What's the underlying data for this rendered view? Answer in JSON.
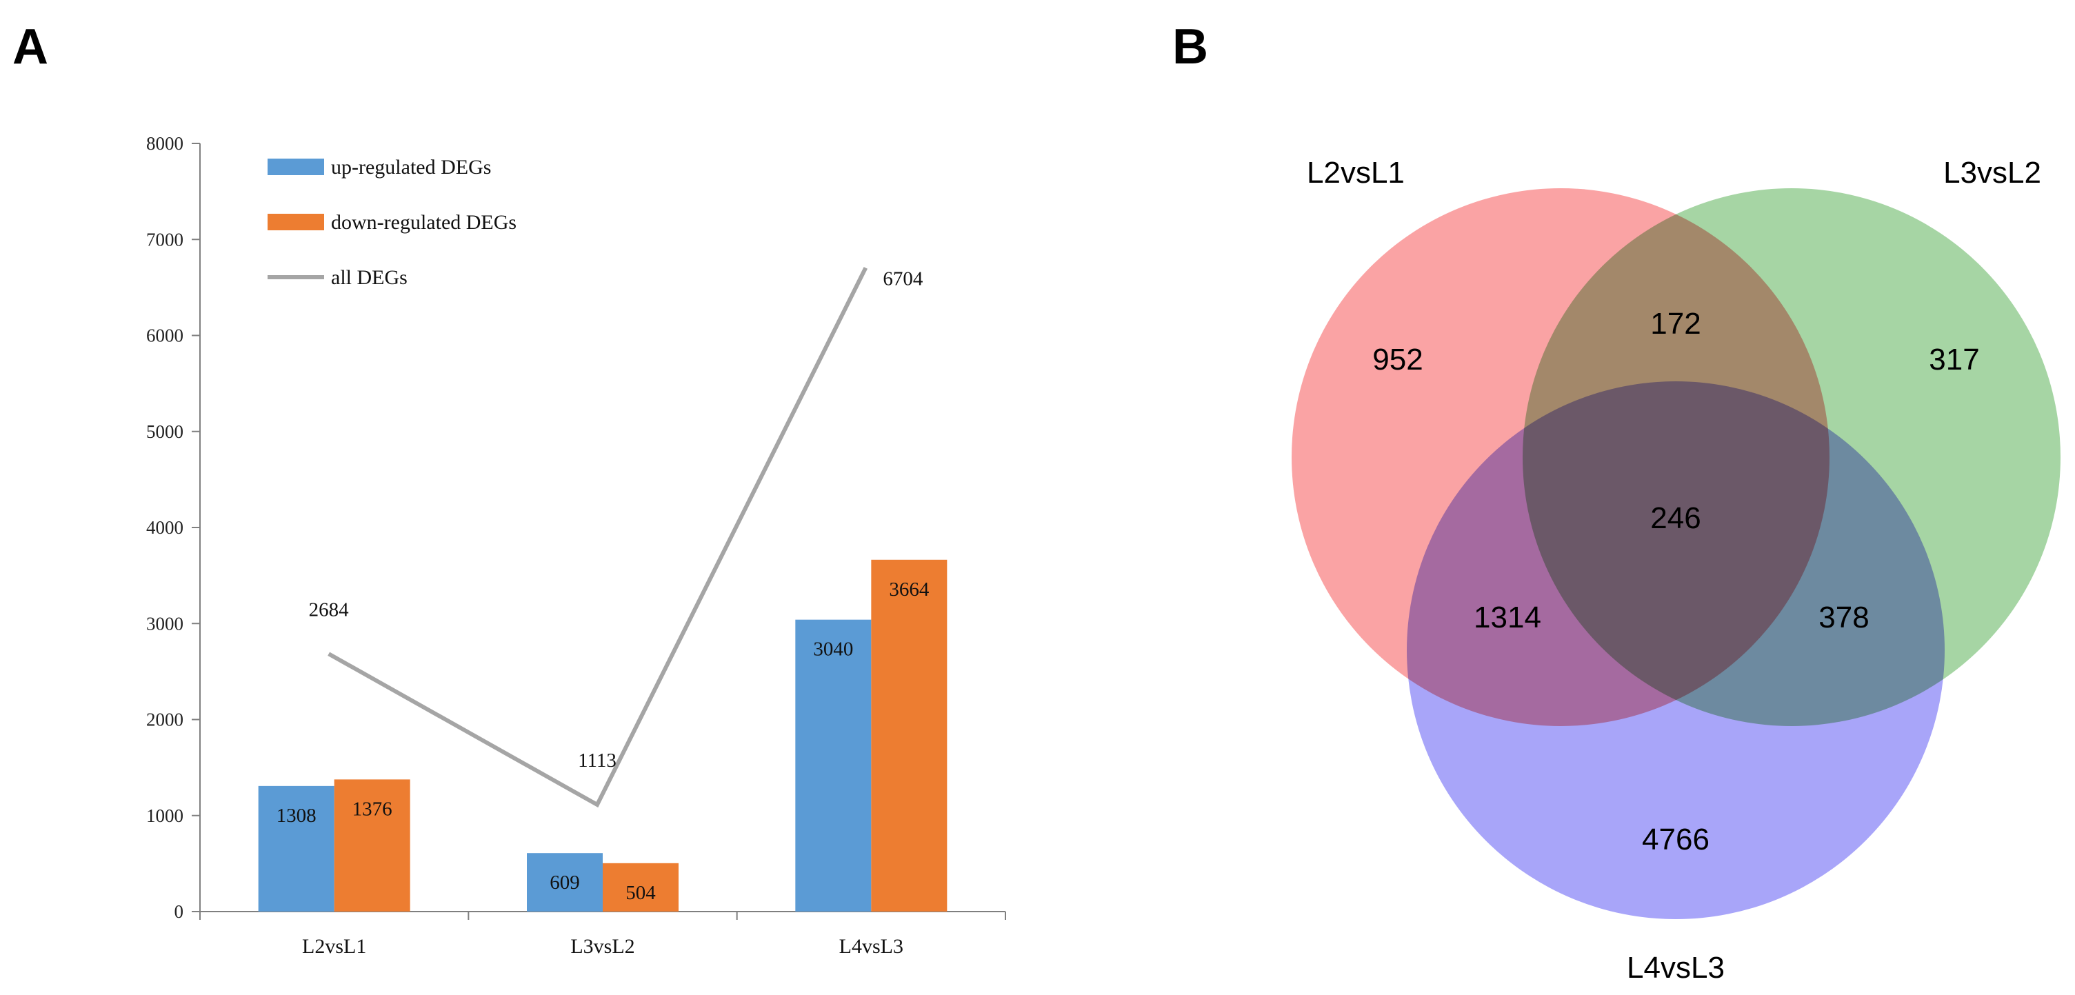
{
  "panels": {
    "a": "A",
    "b": "B"
  },
  "chart_data": [
    {
      "type": "bar",
      "title": "",
      "xlabel": "",
      "ylabel": "",
      "ylim": [
        0,
        8000
      ],
      "yticks": [
        0,
        1000,
        2000,
        3000,
        4000,
        5000,
        6000,
        7000,
        8000
      ],
      "categories": [
        "L2vsL1",
        "L3vsL2",
        "L4vsL3"
      ],
      "series": [
        {
          "name": "up-regulated DEGs",
          "kind": "bar",
          "color": "#5b9bd5",
          "values": [
            1308,
            609,
            3040
          ]
        },
        {
          "name": "down-regulated DEGs",
          "kind": "bar",
          "color": "#ed7d31",
          "values": [
            1376,
            504,
            3664
          ]
        },
        {
          "name": "all DEGs",
          "kind": "line",
          "color": "#a5a5a5",
          "values": [
            2684,
            1113,
            6704
          ]
        }
      ],
      "legend_position": "top-left"
    },
    {
      "type": "venn",
      "sets": [
        {
          "name": "L2vsL1",
          "color": "#f8898b"
        },
        {
          "name": "L3vsL2",
          "color": "#8dc98b"
        },
        {
          "name": "L4vsL3",
          "color": "#8f8cf7"
        }
      ],
      "regions": {
        "L2vsL1_only": 952,
        "L3vsL2_only": 317,
        "L4vsL3_only": 4766,
        "L2vsL1_L3vsL2": 172,
        "L2vsL1_L4vsL3": 1314,
        "L3vsL2_L4vsL3": 378,
        "all_three": 246
      }
    }
  ]
}
